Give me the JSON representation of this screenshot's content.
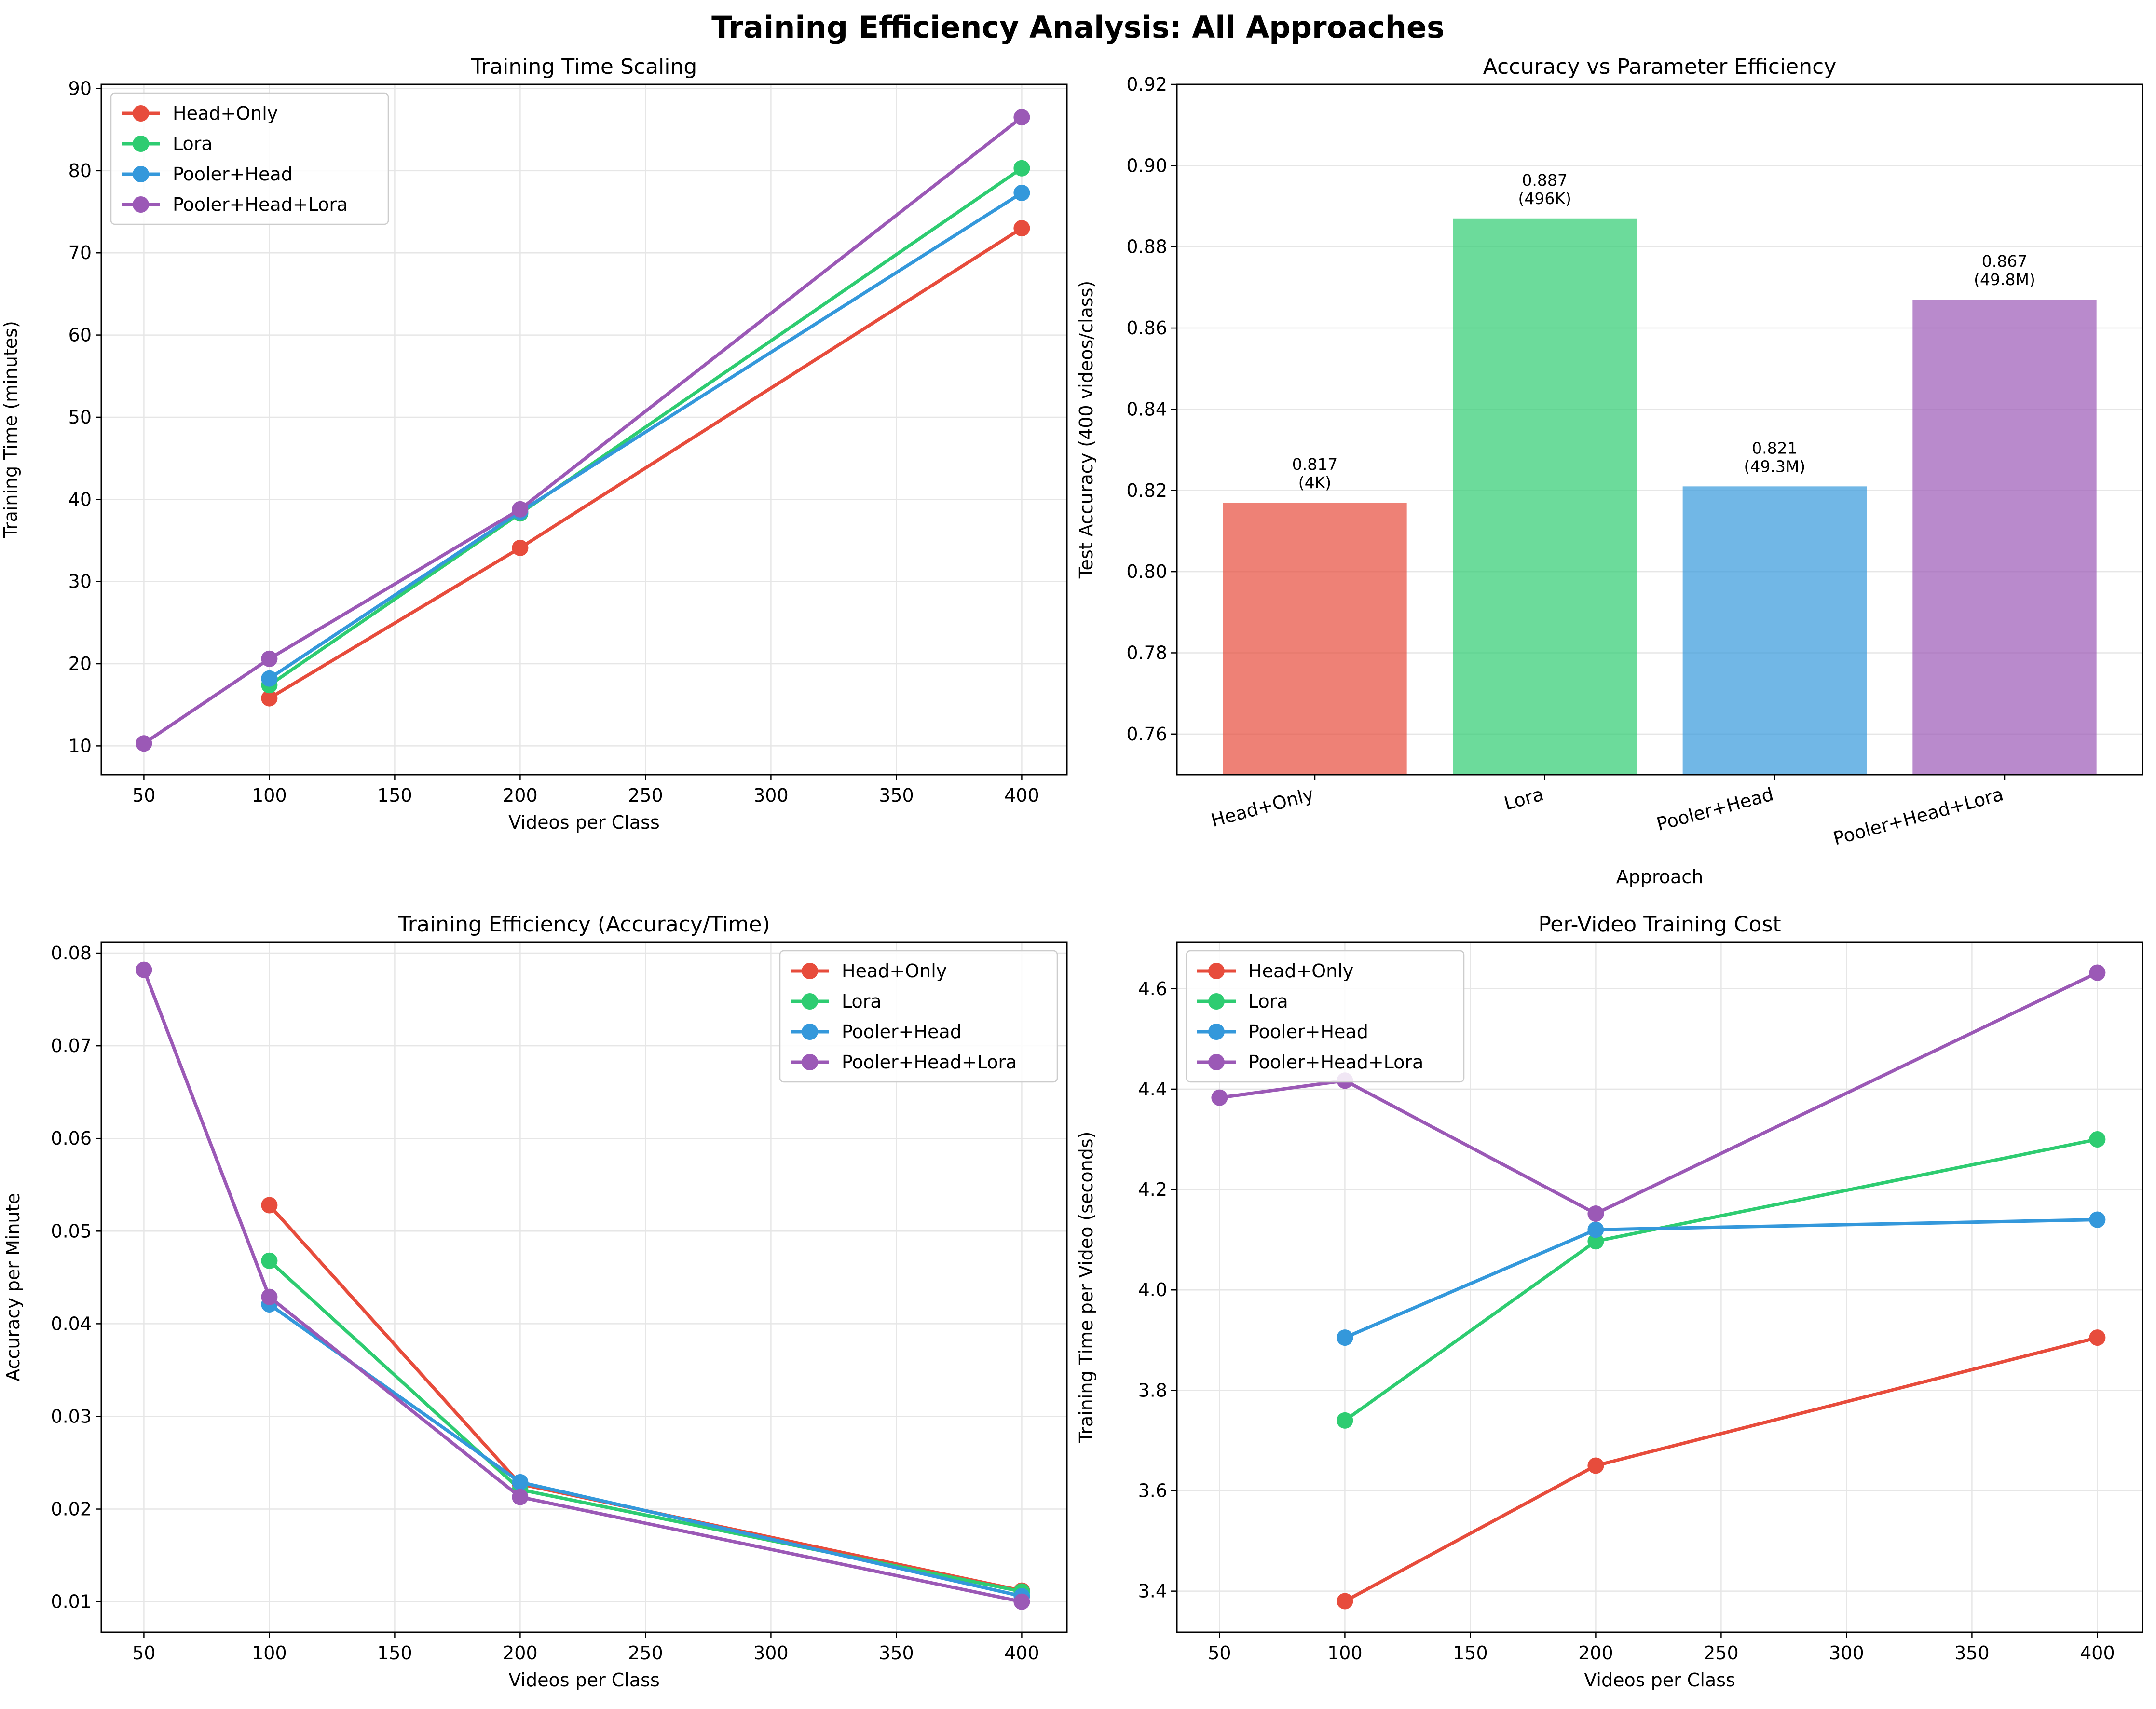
{
  "title": "Training Efficiency Analysis: All Approaches",
  "colors": {
    "Head+Only": "#e74c3c",
    "Lora": "#2ecc71",
    "Pooler+Head": "#3498db",
    "Pooler+Head+Lora": "#9b59b6"
  },
  "chart_data": [
    {
      "type": "line",
      "title": "Training Time Scaling",
      "xlabel": "Videos per Class",
      "ylabel": "Training Time (minutes)",
      "xlim": [
        33,
        418
      ],
      "ylim": [
        6.5,
        90.5
      ],
      "xticks": [
        "50",
        "100",
        "150",
        "200",
        "250",
        "300",
        "350",
        "400"
      ],
      "yticks": [
        "10",
        "20",
        "30",
        "40",
        "50",
        "60",
        "70",
        "80",
        "90"
      ],
      "grid": true,
      "legend": "top-left",
      "series": [
        {
          "name": "Head+Only",
          "x": [
            100,
            200,
            400
          ],
          "y": [
            15.8,
            34.1,
            73.0
          ]
        },
        {
          "name": "Lora",
          "x": [
            100,
            200,
            400
          ],
          "y": [
            17.4,
            38.3,
            80.3
          ]
        },
        {
          "name": "Pooler+Head",
          "x": [
            100,
            200,
            400
          ],
          "y": [
            18.2,
            38.5,
            77.3
          ]
        },
        {
          "name": "Pooler+Head+Lora",
          "x": [
            50,
            100,
            200,
            400
          ],
          "y": [
            10.3,
            20.6,
            38.8,
            86.5
          ]
        }
      ]
    },
    {
      "type": "bar",
      "title": "Accuracy vs Parameter Efficiency",
      "xlabel": "Approach",
      "ylabel": "Test Accuracy (400 videos/class)",
      "ylim": [
        0.75,
        0.92
      ],
      "yticks": [
        "0.76",
        "0.78",
        "0.80",
        "0.82",
        "0.84",
        "0.86",
        "0.88",
        "0.90",
        "0.92"
      ],
      "grid": true,
      "categories": [
        "Head+Only",
        "Lora",
        "Pooler+Head",
        "Pooler+Head+Lora"
      ],
      "values": [
        0.817,
        0.887,
        0.821,
        0.867
      ],
      "data_labels": [
        {
          "value": "0.817",
          "params": "(4K)"
        },
        {
          "value": "0.887",
          "params": "(496K)"
        },
        {
          "value": "0.821",
          "params": "(49.3M)"
        },
        {
          "value": "0.867",
          "params": "(49.8M)"
        }
      ]
    },
    {
      "type": "line",
      "title": "Training Efficiency (Accuracy/Time)",
      "xlabel": "Videos per Class",
      "ylabel": "Accuracy per Minute",
      "xlim": [
        33,
        418
      ],
      "ylim": [
        0.0067,
        0.0812
      ],
      "xticks": [
        "50",
        "100",
        "150",
        "200",
        "250",
        "300",
        "350",
        "400"
      ],
      "yticks": [
        "0.01",
        "0.02",
        "0.03",
        "0.04",
        "0.05",
        "0.06",
        "0.07",
        "0.08"
      ],
      "grid": true,
      "legend": "top-right",
      "series": [
        {
          "name": "Head+Only",
          "x": [
            100,
            200,
            400
          ],
          "y": [
            0.0528,
            0.0227,
            0.0112
          ]
        },
        {
          "name": "Lora",
          "x": [
            100,
            200,
            400
          ],
          "y": [
            0.0468,
            0.0221,
            0.0111
          ]
        },
        {
          "name": "Pooler+Head",
          "x": [
            100,
            200,
            400
          ],
          "y": [
            0.0421,
            0.0229,
            0.0106
          ]
        },
        {
          "name": "Pooler+Head+Lora",
          "x": [
            50,
            100,
            200,
            400
          ],
          "y": [
            0.0782,
            0.0429,
            0.0213,
            0.01
          ]
        }
      ]
    },
    {
      "type": "line",
      "title": "Per-Video Training Cost",
      "xlabel": "Videos per Class",
      "ylabel": "Training Time per Video (seconds)",
      "xlim": [
        33,
        418
      ],
      "ylim": [
        3.318,
        4.693
      ],
      "xticks": [
        "50",
        "100",
        "150",
        "200",
        "250",
        "300",
        "350",
        "400"
      ],
      "yticks": [
        "3.4",
        "3.6",
        "3.8",
        "4.0",
        "4.2",
        "4.4",
        "4.6"
      ],
      "grid": true,
      "legend": "top-left",
      "series": [
        {
          "name": "Head+Only",
          "x": [
            100,
            200,
            400
          ],
          "y": [
            3.38,
            3.65,
            3.905
          ]
        },
        {
          "name": "Lora",
          "x": [
            100,
            200,
            400
          ],
          "y": [
            3.74,
            4.097,
            4.3
          ]
        },
        {
          "name": "Pooler+Head",
          "x": [
            100,
            200,
            400
          ],
          "y": [
            3.905,
            4.12,
            4.14
          ]
        },
        {
          "name": "Pooler+Head+Lora",
          "x": [
            50,
            100,
            200,
            400
          ],
          "y": [
            4.383,
            4.417,
            4.152,
            4.632
          ]
        }
      ]
    }
  ]
}
